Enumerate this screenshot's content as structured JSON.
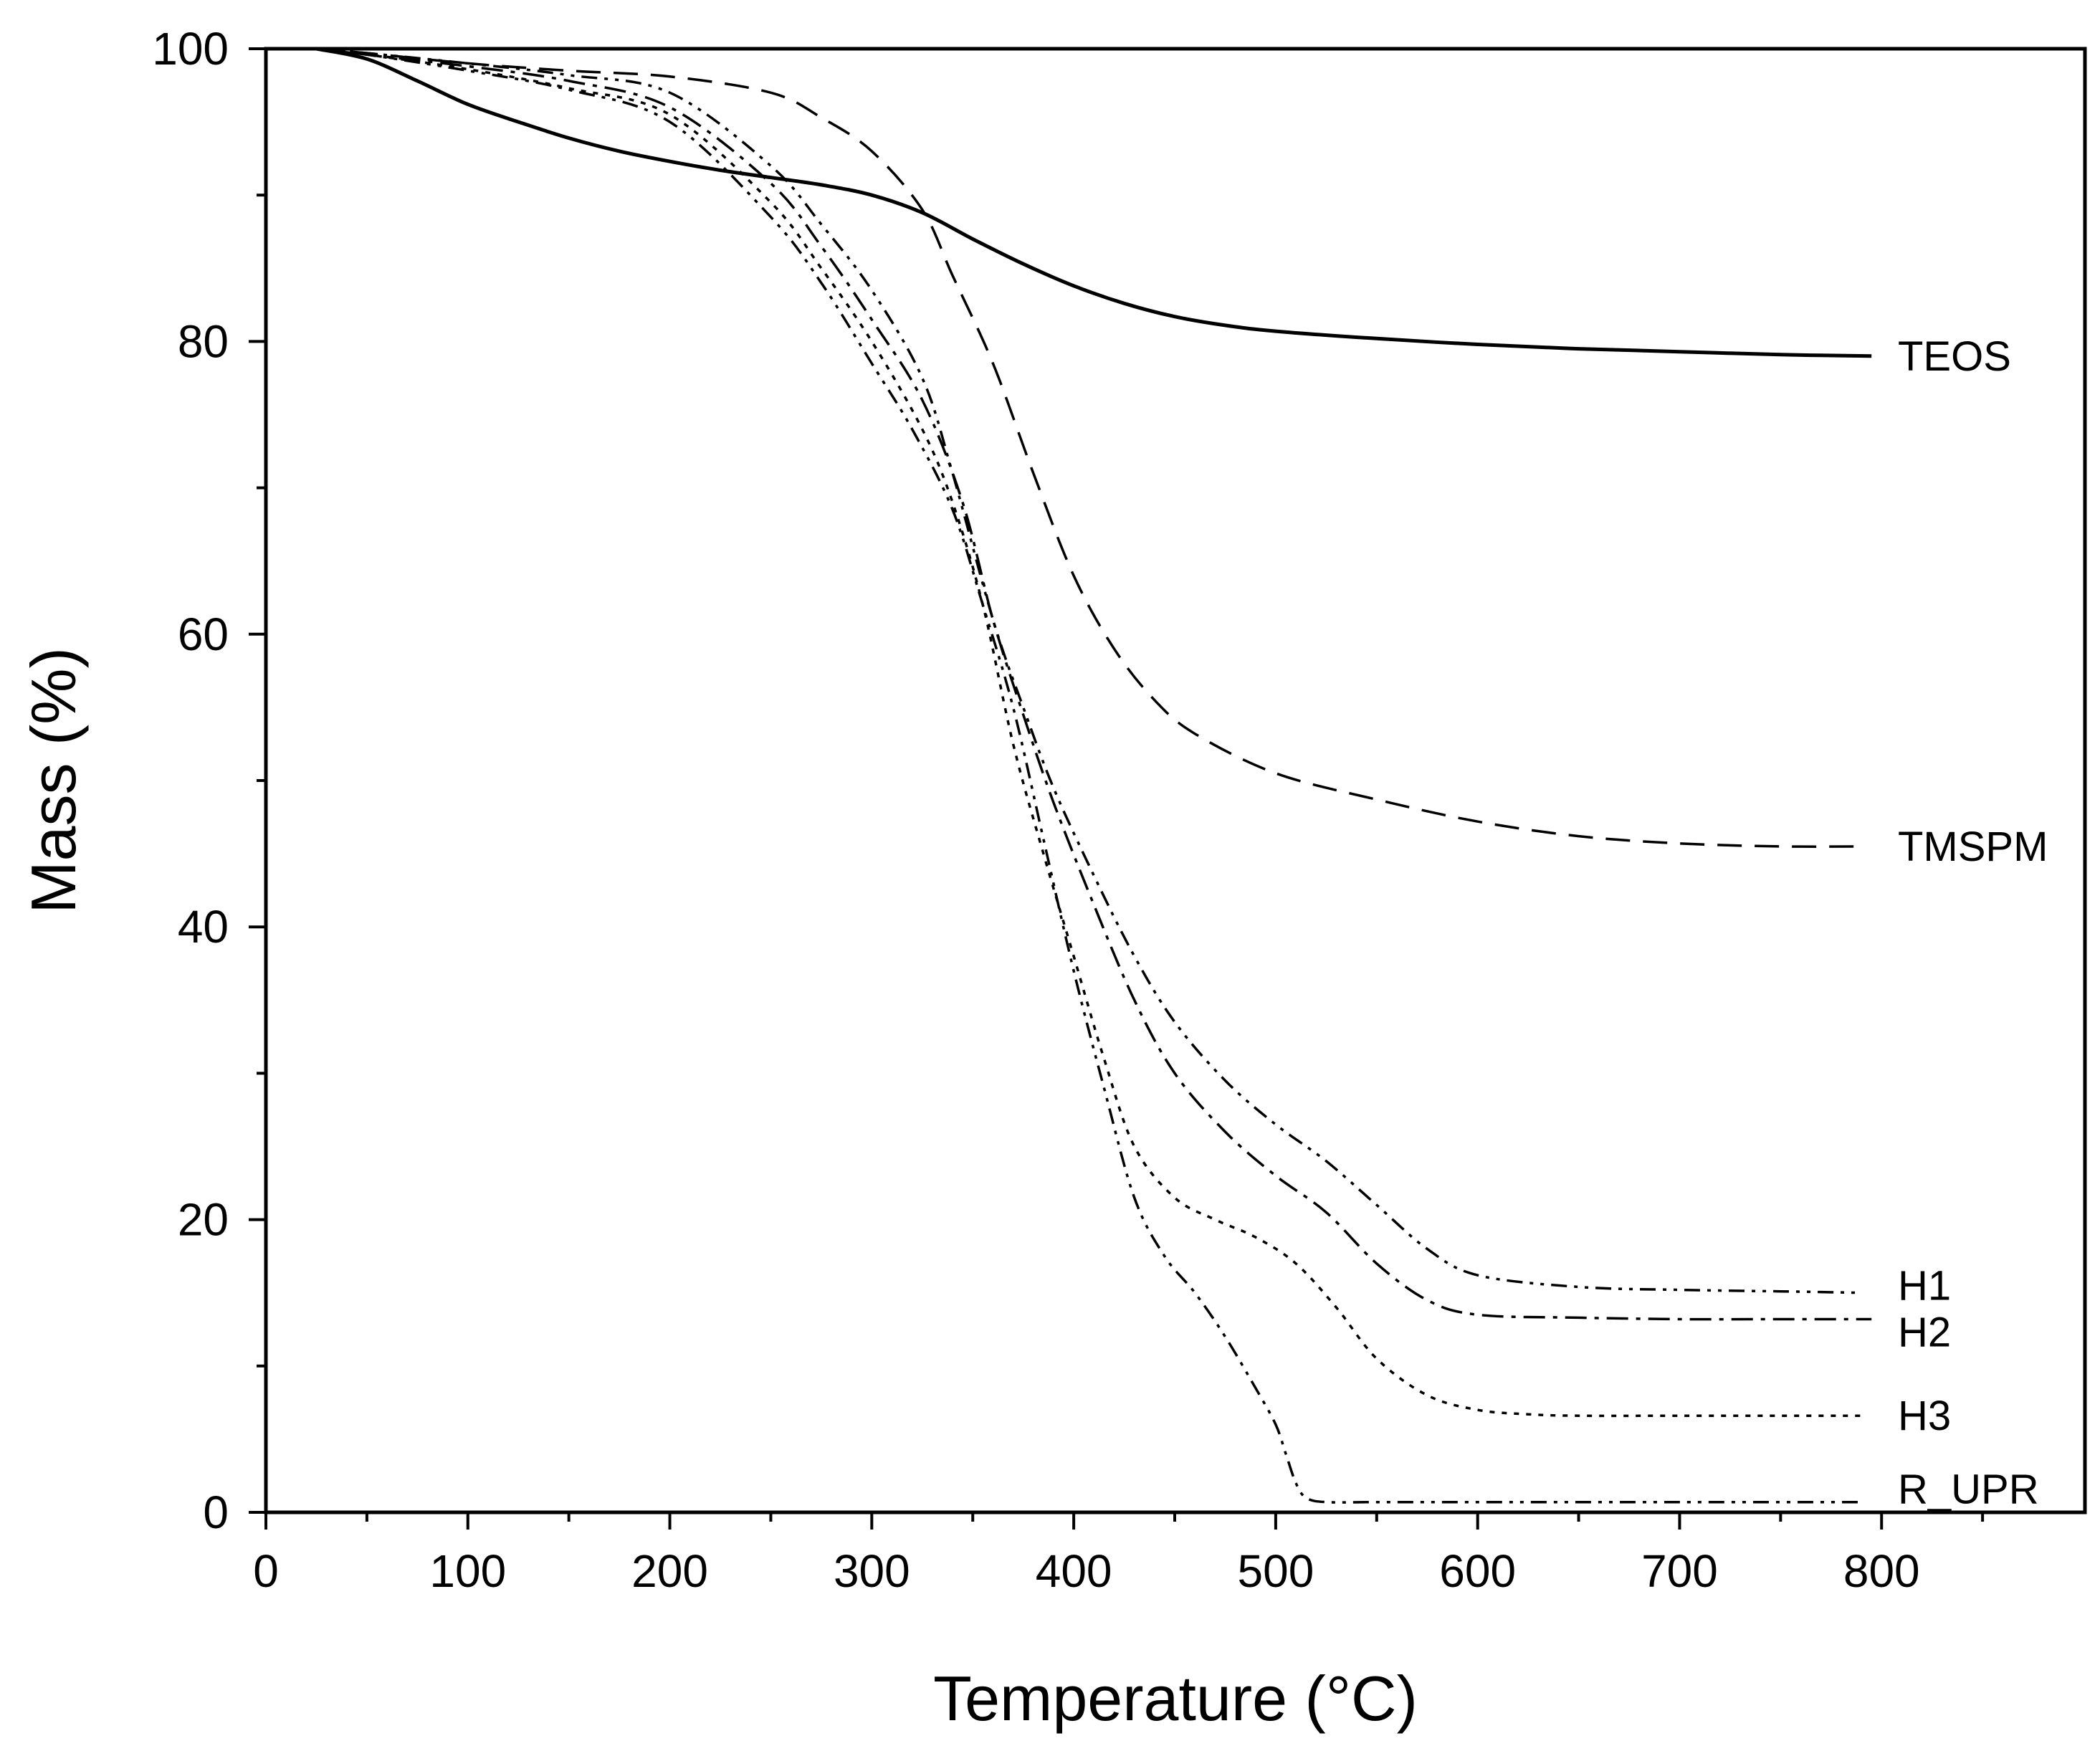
{
  "chart_data": {
    "type": "line",
    "xlabel": "Temperature (°C)",
    "ylabel": "Mass (%)",
    "xlim": [
      0,
      900
    ],
    "ylim": [
      0,
      100
    ],
    "x_ticks": [
      0,
      100,
      200,
      300,
      400,
      500,
      600,
      700,
      800
    ],
    "y_ticks": [
      0,
      20,
      40,
      60,
      80,
      100
    ],
    "x_minor_step": 50,
    "y_minor_step": 10,
    "grid": false,
    "legend": "inline labels at right end of each curve",
    "series": [
      {
        "name": "TEOS",
        "style": "solid",
        "x": [
          25,
          50,
          75,
          100,
          125,
          150,
          175,
          200,
          225,
          250,
          275,
          300,
          325,
          350,
          375,
          400,
          425,
          450,
          475,
          500,
          550,
          600,
          650,
          700,
          750,
          795
        ],
        "y": [
          100,
          99.3,
          97.8,
          96.2,
          95,
          93.9,
          93,
          92.3,
          91.7,
          91.2,
          90.7,
          90,
          88.8,
          87,
          85.3,
          83.8,
          82.6,
          81.7,
          81.1,
          80.7,
          80.2,
          79.8,
          79.5,
          79.3,
          79.1,
          79
        ]
      },
      {
        "name": "TMSPM",
        "style": "dashed",
        "x": [
          25,
          50,
          100,
          150,
          200,
          250,
          275,
          300,
          325,
          340,
          360,
          380,
          400,
          420,
          440,
          460,
          500,
          550,
          600,
          650,
          700,
          750,
          790
        ],
        "y": [
          100,
          99.7,
          99,
          98.5,
          98.1,
          97,
          95.3,
          93,
          89,
          84.5,
          78.5,
          71,
          64,
          59,
          55.5,
          53.2,
          50.5,
          48.7,
          47.2,
          46.2,
          45.7,
          45.5,
          45.5
        ]
      },
      {
        "name": "H1",
        "style": "dash-dot-dot",
        "x": [
          25,
          50,
          100,
          150,
          200,
          250,
          275,
          300,
          325,
          340,
          360,
          375,
          390,
          410,
          430,
          450,
          475,
          500,
          525,
          550,
          575,
          600,
          650,
          700,
          750,
          790
        ],
        "y": [
          100,
          99.7,
          99,
          98.2,
          97,
          92,
          88,
          83.5,
          77.5,
          71,
          61,
          55,
          49.5,
          43.5,
          38,
          33.5,
          29.5,
          26.5,
          24,
          21,
          18,
          16.2,
          15.4,
          15.2,
          15.1,
          15
        ]
      },
      {
        "name": "H2",
        "style": "dash-dot",
        "x": [
          25,
          50,
          100,
          150,
          200,
          250,
          275,
          300,
          325,
          345,
          360,
          375,
          390,
          410,
          430,
          450,
          475,
          500,
          525,
          550,
          575,
          600,
          650,
          700,
          750,
          795
        ],
        "y": [
          100,
          99.6,
          98.8,
          97.8,
          96,
          90.8,
          86.5,
          81.5,
          76,
          69,
          61,
          54.5,
          48.5,
          41.5,
          35,
          30,
          26,
          23,
          20.5,
          17,
          14.5,
          13.5,
          13.3,
          13.2,
          13.2,
          13.2
        ]
      },
      {
        "name": "H3",
        "style": "dotted",
        "x": [
          25,
          50,
          100,
          150,
          200,
          250,
          275,
          300,
          325,
          340,
          355,
          370,
          385,
          400,
          415,
          430,
          450,
          470,
          490,
          510,
          530,
          550,
          575,
          600,
          625,
          650,
          700,
          750,
          790
        ],
        "y": [
          100,
          99.6,
          98.6,
          97.3,
          95.5,
          89.5,
          85,
          80,
          74,
          69,
          62,
          52.5,
          45,
          38,
          31,
          25,
          21.5,
          20,
          18.8,
          17,
          14,
          10.5,
          8,
          7,
          6.7,
          6.6,
          6.6,
          6.6,
          6.6
        ]
      },
      {
        "name": "R_UPR",
        "style": "dash-dot-dot",
        "x": [
          25,
          50,
          100,
          150,
          200,
          250,
          275,
          300,
          320,
          340,
          355,
          370,
          385,
          400,
          415,
          430,
          445,
          460,
          475,
          490,
          500,
          505,
          510,
          515,
          525,
          550,
          600,
          700,
          790
        ],
        "y": [
          100,
          99.6,
          98.5,
          97.2,
          95,
          88.5,
          84,
          78.5,
          74,
          68.5,
          62,
          55,
          46,
          37,
          29,
          21.5,
          17.5,
          15,
          12,
          8.5,
          6,
          4,
          2,
          1,
          0.7,
          0.7,
          0.7,
          0.7,
          0.7
        ]
      }
    ]
  }
}
